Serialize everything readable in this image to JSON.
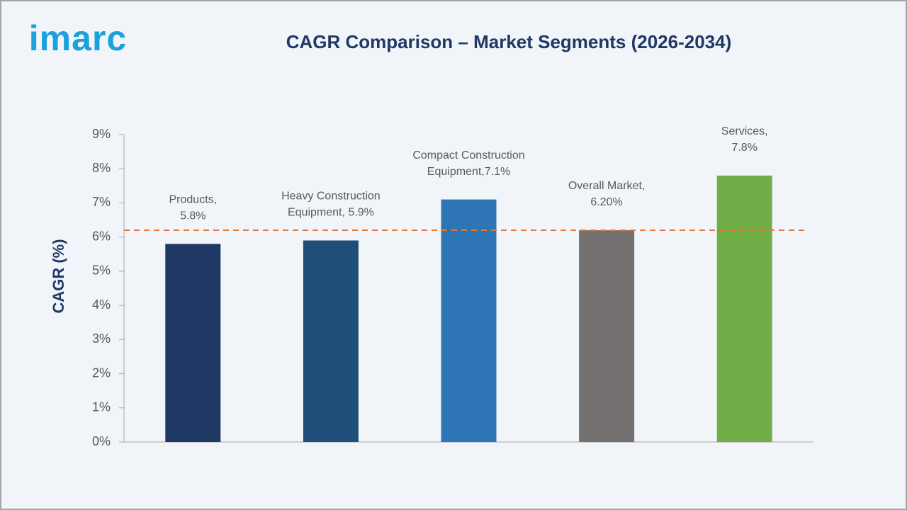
{
  "logo": "imarc",
  "chart_data": {
    "type": "bar",
    "title": "CAGR Comparison – Market Segments (2026-2034)",
    "y_label": "CAGR (%)",
    "values": [
      5.8,
      5.9,
      7.1,
      6.2,
      7.8
    ],
    "value_labels": [
      [
        "Products,",
        "5.8%"
      ],
      [
        "Heavy Construction",
        "Equipment, 5.9%"
      ],
      [
        "Compact Construction",
        "Equipment,7.1%"
      ],
      [
        "Overall Market,",
        "6.20%"
      ],
      [
        "Services,",
        "7.8%"
      ]
    ],
    "colors": [
      "#1f3763",
      "#1f4e79",
      "#2e75b6",
      "#767171",
      "#70ad47"
    ],
    "ylim": [
      0,
      9
    ],
    "yticks": [
      {
        "value": 0,
        "label": "0%"
      },
      {
        "value": 1,
        "label": "1%"
      },
      {
        "value": 2,
        "label": "2%"
      },
      {
        "value": 3,
        "label": "3%"
      },
      {
        "value": 4,
        "label": "4%"
      },
      {
        "value": 5,
        "label": "5%"
      },
      {
        "value": 6,
        "label": "6%"
      },
      {
        "value": 7,
        "label": "7%"
      },
      {
        "value": 8,
        "label": "8%"
      },
      {
        "value": 9,
        "label": "9%"
      }
    ],
    "reference_line": {
      "value": 6.2,
      "color": "#e07b39"
    },
    "grid": false
  }
}
